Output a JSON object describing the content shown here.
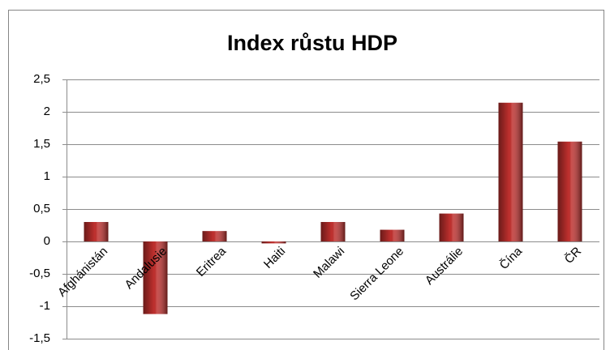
{
  "chart_data": {
    "type": "bar",
    "title": "Index růstu HDP",
    "categories": [
      "Afghánistán",
      "Andalusie",
      "Eritrea",
      "Haiti",
      "Malawi",
      "Sierra Leone",
      "Austrálie",
      "Čína",
      "ČR"
    ],
    "values": [
      0.3,
      -1.12,
      0.16,
      -0.03,
      0.3,
      0.18,
      0.43,
      2.14,
      1.54
    ],
    "color": "#c0302e",
    "ylim": [
      -1.5,
      2.5
    ],
    "yticks": [
      {
        "value": -1.5,
        "label": "-1,5"
      },
      -1,
      {
        "value": -0.5,
        "label": "-0,5"
      },
      0,
      {
        "value": 0.5,
        "label": "0,5"
      },
      1,
      {
        "value": 1.5,
        "label": "1,5"
      },
      2,
      {
        "value": 2.5,
        "label": "2,5"
      }
    ],
    "grid": true
  }
}
